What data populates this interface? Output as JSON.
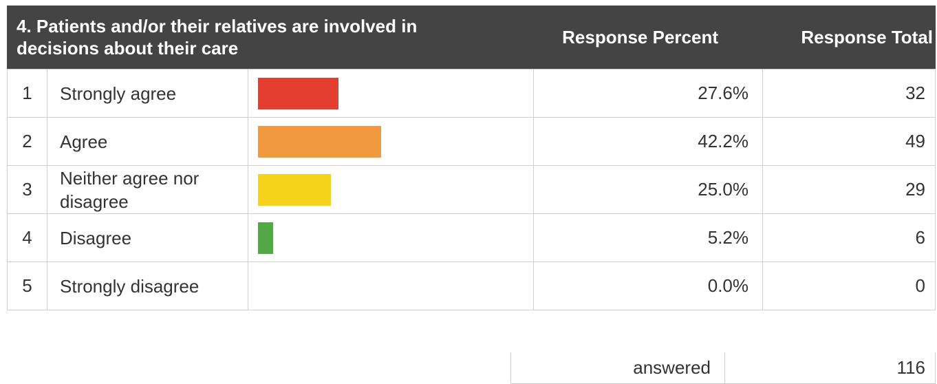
{
  "header": {
    "question": "4. Patients and/or their relatives are involved in decisions about their care",
    "percent_label": "Response Percent",
    "total_label": "Response Total"
  },
  "colors": [
    "#e43e30",
    "#f1993e",
    "#f5d31c",
    "#51a845",
    "#cccccc"
  ],
  "chart_data": {
    "type": "bar",
    "categories": [
      "Strongly agree",
      "Agree",
      "Neither agree nor disagree",
      "Disagree",
      "Strongly disagree"
    ],
    "series": [
      {
        "values": [
          27.6,
          42.2,
          25.0,
          5.2,
          0.0
        ]
      }
    ],
    "rows": [
      {
        "num": "1",
        "label": "Strongly agree",
        "percent": 27.6,
        "percent_text": "27.6%",
        "total": "32"
      },
      {
        "num": "2",
        "label": "Agree",
        "percent": 42.2,
        "percent_text": "42.2%",
        "total": "49"
      },
      {
        "num": "3",
        "label": "Neither agree nor disagree",
        "percent": 25.0,
        "percent_text": "25.0%",
        "total": "29"
      },
      {
        "num": "4",
        "label": "Disagree",
        "percent": 5.2,
        "percent_text": "5.2%",
        "total": "6"
      },
      {
        "num": "5",
        "label": "Strongly disagree",
        "percent": 0.0,
        "percent_text": "0.0%",
        "total": "0"
      }
    ],
    "xlim": [
      0,
      100
    ]
  },
  "footer": {
    "answered_label": "answered",
    "answered_total": "116"
  }
}
